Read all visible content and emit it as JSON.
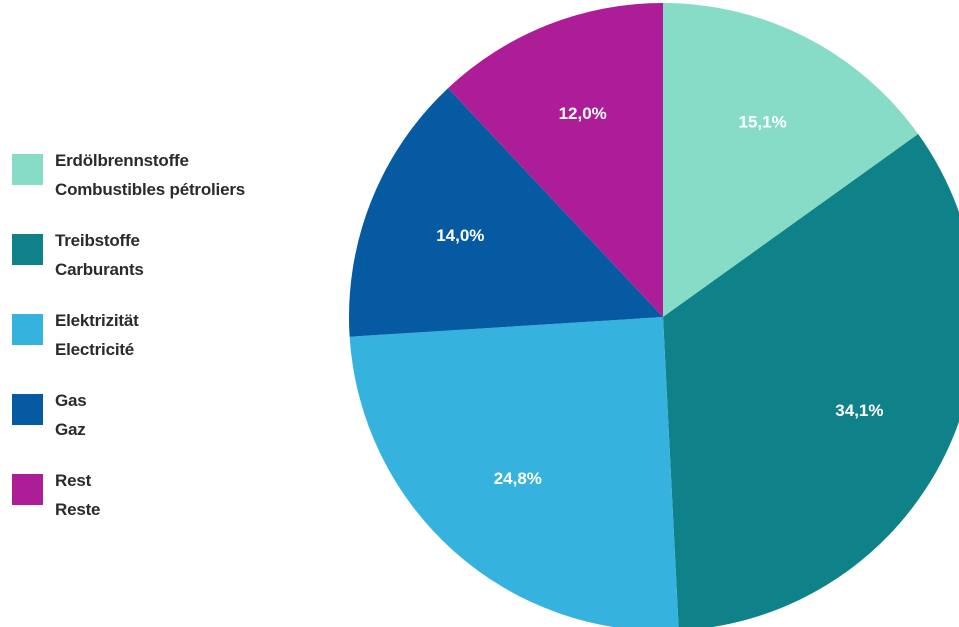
{
  "chart_data": {
    "type": "pie",
    "slices": [
      {
        "de": "Erdölbrennstoffe",
        "fr": "Combustibles pétroliers",
        "value": 15.1,
        "label": "15,1%",
        "color": "#86dcc6"
      },
      {
        "de": "Treibstoffe",
        "fr": "Carburants",
        "value": 34.1,
        "label": "34,1%",
        "color": "#0f8189"
      },
      {
        "de": "Elektrizität",
        "fr": "Electricité",
        "value": 24.8,
        "label": "24,8%",
        "color": "#36b2df"
      },
      {
        "de": "Gas",
        "fr": "Gaz",
        "value": 14.0,
        "label": "14,0%",
        "color": "#055aa1"
      },
      {
        "de": "Rest",
        "fr": "Reste",
        "value": 12.0,
        "label": "12,0%",
        "color": "#ad1d97"
      }
    ],
    "legend_position": "left",
    "start": "12 o'clock",
    "direction": "clockwise"
  }
}
